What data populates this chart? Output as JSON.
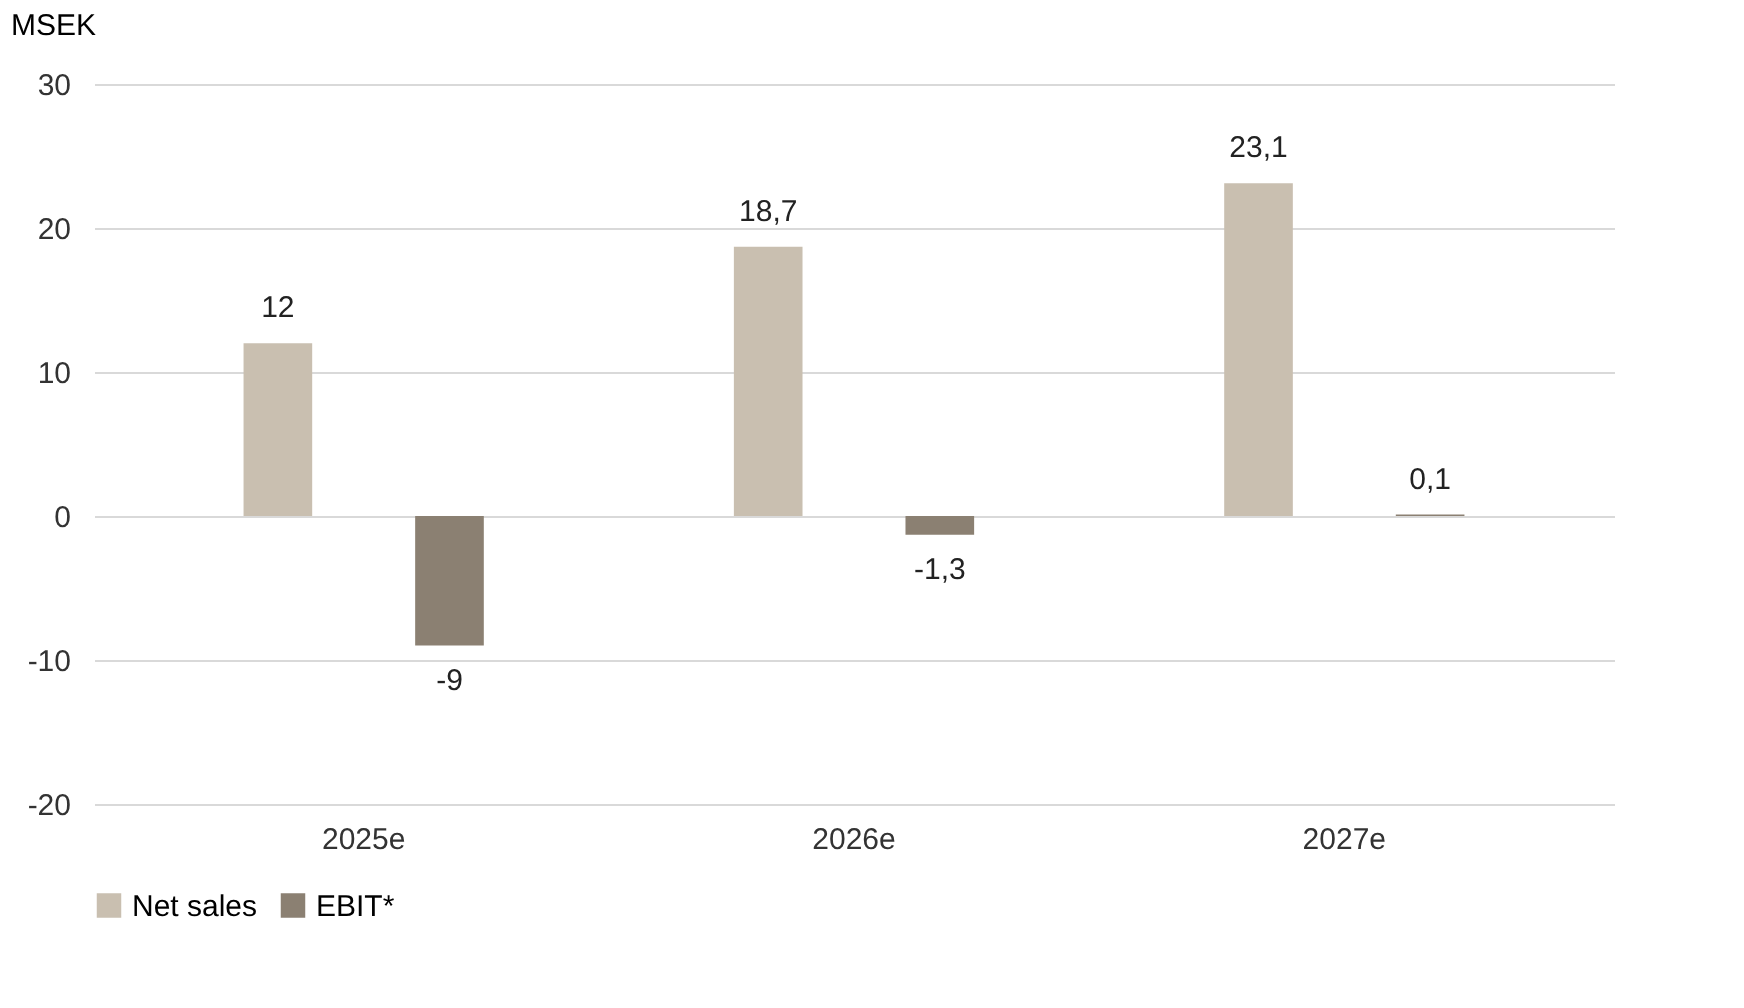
{
  "chart_data": {
    "type": "bar",
    "ylabel": "MSEK",
    "categories": [
      "2025e",
      "2026e",
      "2027e"
    ],
    "series": [
      {
        "name": "Net sales",
        "color": "#c9bfb0",
        "values": [
          12,
          18.7,
          23.1
        ],
        "value_labels": [
          "12",
          "18,7",
          "23,1"
        ]
      },
      {
        "name": "EBIT*",
        "color": "#8b8072",
        "values": [
          -9,
          -1.3,
          0.1
        ],
        "value_labels": [
          "-9",
          "-1,3",
          "0,1"
        ]
      }
    ],
    "ylim": [
      -20,
      30
    ],
    "yticks": [
      -20,
      -10,
      0,
      10,
      20,
      30
    ],
    "grid": "y",
    "legend": "bottom"
  }
}
